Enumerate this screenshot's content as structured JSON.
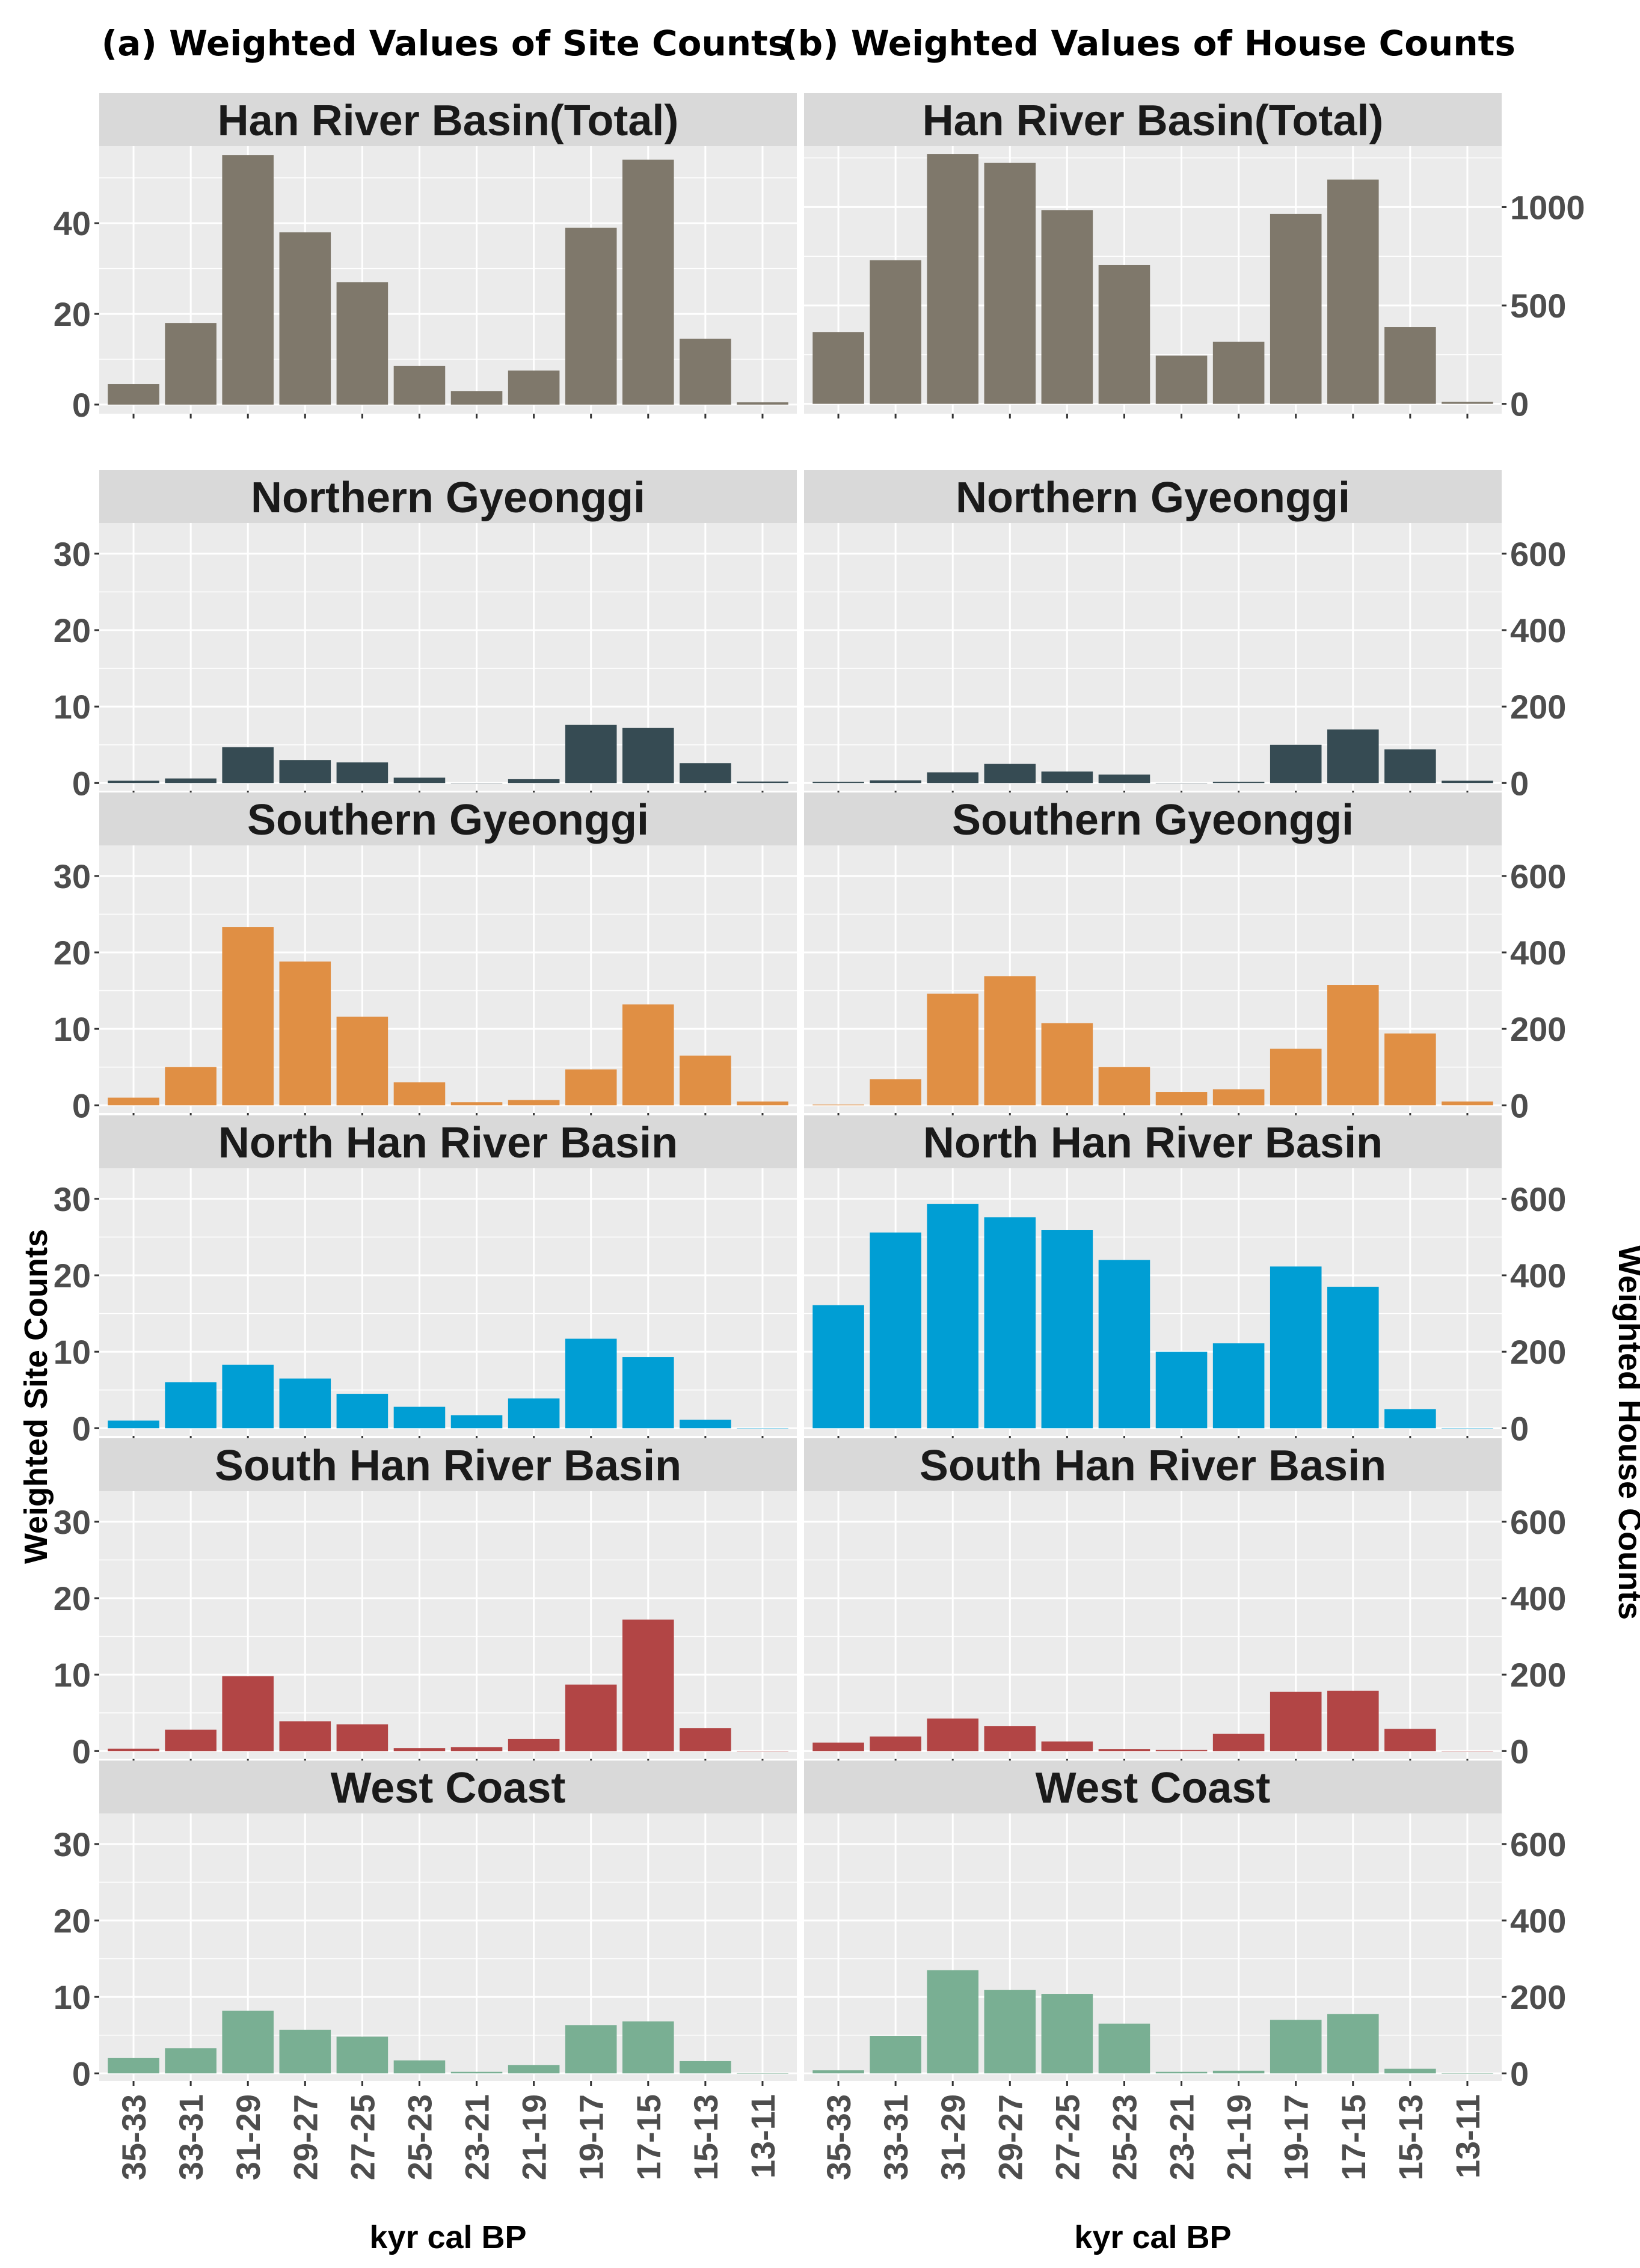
{
  "titles": {
    "left": "(a) Weighted Values of Site Counts",
    "right": "(b) Weighted Values of House Counts"
  },
  "axis_labels": {
    "ylabel_left": "Weighted Site Counts",
    "ylabel_right": "Weighted House Counts",
    "xlabel": "kyr cal BP"
  },
  "colors": {
    "panel_bg": "#EBEBEB",
    "strip_bg": "#D9D9D9",
    "grid": "#FFFFFF",
    "regions": [
      "#7F786B",
      "#364B53",
      "#E08F44",
      "#009ED4",
      "#B24545",
      "#79AF93"
    ]
  },
  "chart_data": [
    {
      "type": "bar",
      "title": "(a) Weighted Values of Site Counts",
      "xlabel": "kyr cal BP",
      "ylabel": "Weighted Site Counts",
      "categories": [
        "35-33",
        "33-31",
        "31-29",
        "29-27",
        "27-25",
        "25-23",
        "23-21",
        "21-19",
        "19-17",
        "17-15",
        "15-13",
        "13-11"
      ],
      "facets": [
        {
          "name": "Han River Basin(Total)",
          "ylim": [
            -2,
            57
          ],
          "ticks": [
            0,
            20,
            40
          ],
          "values": [
            4.5,
            18,
            55,
            38,
            27,
            8.5,
            3,
            7.5,
            39,
            54,
            14.5,
            0.5
          ]
        },
        {
          "name": "Northern Gyeonggi",
          "ylim": [
            -1,
            34
          ],
          "ticks": [
            0,
            10,
            20,
            30
          ],
          "values": [
            0.3,
            0.6,
            4.7,
            3.0,
            2.7,
            0.7,
            0,
            0.5,
            7.6,
            7.2,
            2.6,
            0.2
          ]
        },
        {
          "name": "Southern Gyeonggi",
          "ylim": [
            -1,
            34
          ],
          "ticks": [
            0,
            10,
            20,
            30
          ],
          "values": [
            1.0,
            5.0,
            23.3,
            18.8,
            11.6,
            3.0,
            0.4,
            0.7,
            4.7,
            13.2,
            6.5,
            0.5
          ]
        },
        {
          "name": "North Han River Basin",
          "ylim": [
            -1,
            34
          ],
          "ticks": [
            0,
            10,
            20,
            30
          ],
          "values": [
            1.0,
            6.0,
            8.3,
            6.5,
            4.5,
            2.8,
            1.7,
            3.9,
            11.7,
            9.3,
            1.1,
            0
          ]
        },
        {
          "name": "South Han River Basin",
          "ylim": [
            -1,
            34
          ],
          "ticks": [
            0,
            10,
            20,
            30
          ],
          "values": [
            0.3,
            2.8,
            9.8,
            3.9,
            3.5,
            0.4,
            0.5,
            1.6,
            8.7,
            17.2,
            3.0,
            0
          ]
        },
        {
          "name": "West Coast",
          "ylim": [
            -1,
            34
          ],
          "ticks": [
            0,
            10,
            20,
            30
          ],
          "values": [
            2.0,
            3.3,
            8.2,
            5.7,
            4.8,
            1.7,
            0.2,
            1.1,
            6.3,
            6.8,
            1.6,
            0
          ]
        }
      ]
    },
    {
      "type": "bar",
      "title": "(b) Weighted Values of House Counts",
      "xlabel": "kyr cal BP",
      "ylabel": "Weighted House Counts",
      "categories": [
        "35-33",
        "33-31",
        "31-29",
        "29-27",
        "27-25",
        "25-23",
        "23-21",
        "21-19",
        "19-17",
        "17-15",
        "15-13",
        "13-11"
      ],
      "facets": [
        {
          "name": "Han River Basin(Total)",
          "ylim": [
            -50,
            1310
          ],
          "ticks": [
            0,
            500,
            1000
          ],
          "values": [
            365,
            730,
            1270,
            1225,
            985,
            705,
            245,
            315,
            965,
            1140,
            390,
            10
          ]
        },
        {
          "name": "Northern Gyeonggi",
          "ylim": [
            -20,
            680
          ],
          "ticks": [
            0,
            200,
            400,
            600
          ],
          "values": [
            3,
            7,
            28,
            50,
            30,
            22,
            0,
            3,
            100,
            140,
            88,
            6
          ]
        },
        {
          "name": "Southern Gyeonggi",
          "ylim": [
            -20,
            680
          ],
          "ticks": [
            0,
            200,
            400,
            600
          ],
          "values": [
            2,
            68,
            292,
            338,
            215,
            100,
            35,
            42,
            148,
            315,
            188,
            10
          ]
        },
        {
          "name": "North Han River Basin",
          "ylim": [
            -20,
            680
          ],
          "ticks": [
            0,
            200,
            400,
            600
          ],
          "values": [
            322,
            512,
            587,
            552,
            518,
            440,
            200,
            222,
            423,
            370,
            50,
            0
          ]
        },
        {
          "name": "South Han River Basin",
          "ylim": [
            -20,
            680
          ],
          "ticks": [
            0,
            200,
            400,
            600
          ],
          "values": [
            22,
            38,
            85,
            65,
            25,
            5,
            3,
            45,
            155,
            158,
            58,
            0
          ]
        },
        {
          "name": "West Coast",
          "ylim": [
            -20,
            680
          ],
          "ticks": [
            0,
            200,
            400,
            600
          ],
          "values": [
            8,
            98,
            270,
            218,
            208,
            130,
            4,
            7,
            140,
            155,
            12,
            0
          ]
        }
      ]
    }
  ]
}
